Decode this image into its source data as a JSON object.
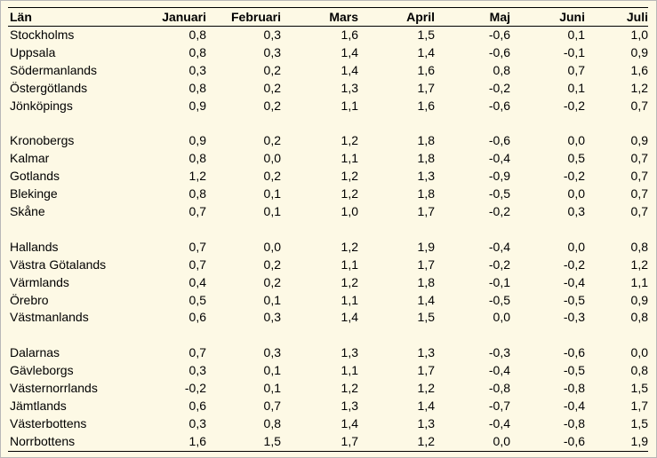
{
  "headers": [
    "Län",
    "Januari",
    "Februari",
    "Mars",
    "April",
    "Maj",
    "Juni",
    "Juli"
  ],
  "groups": [
    {
      "rows": [
        {
          "name": "Stockholms",
          "values": [
            "0,8",
            "0,3",
            "1,6",
            "1,5",
            "-0,6",
            "0,1",
            "1,0"
          ]
        },
        {
          "name": "Uppsala",
          "values": [
            "0,8",
            "0,3",
            "1,4",
            "1,4",
            "-0,6",
            "-0,1",
            "0,9"
          ]
        },
        {
          "name": "Södermanlands",
          "values": [
            "0,3",
            "0,2",
            "1,4",
            "1,6",
            "0,8",
            "0,7",
            "1,6"
          ]
        },
        {
          "name": "Östergötlands",
          "values": [
            "0,8",
            "0,2",
            "1,3",
            "1,7",
            "-0,2",
            "0,1",
            "1,2"
          ]
        },
        {
          "name": "Jönköpings",
          "values": [
            "0,9",
            "0,2",
            "1,1",
            "1,6",
            "-0,6",
            "-0,2",
            "0,7"
          ]
        }
      ]
    },
    {
      "rows": [
        {
          "name": "Kronobergs",
          "values": [
            "0,9",
            "0,2",
            "1,2",
            "1,8",
            "-0,6",
            "0,0",
            "0,9"
          ]
        },
        {
          "name": "Kalmar",
          "values": [
            "0,8",
            "0,0",
            "1,1",
            "1,8",
            "-0,4",
            "0,5",
            "0,7"
          ]
        },
        {
          "name": "Gotlands",
          "values": [
            "1,2",
            "0,2",
            "1,2",
            "1,3",
            "-0,9",
            "-0,2",
            "0,7"
          ]
        },
        {
          "name": "Blekinge",
          "values": [
            "0,8",
            "0,1",
            "1,2",
            "1,8",
            "-0,5",
            "0,0",
            "0,7"
          ]
        },
        {
          "name": "Skåne",
          "values": [
            "0,7",
            "0,1",
            "1,0",
            "1,7",
            "-0,2",
            "0,3",
            "0,7"
          ]
        }
      ]
    },
    {
      "rows": [
        {
          "name": "Hallands",
          "values": [
            "0,7",
            "0,0",
            "1,2",
            "1,9",
            "-0,4",
            "0,0",
            "0,8"
          ]
        },
        {
          "name": "Västra Götalands",
          "values": [
            "0,7",
            "0,2",
            "1,1",
            "1,7",
            "-0,2",
            "-0,2",
            "1,2"
          ]
        },
        {
          "name": "Värmlands",
          "values": [
            "0,4",
            "0,2",
            "1,2",
            "1,8",
            "-0,1",
            "-0,4",
            "1,1"
          ]
        },
        {
          "name": "Örebro",
          "values": [
            "0,5",
            "0,1",
            "1,1",
            "1,4",
            "-0,5",
            "-0,5",
            "0,9"
          ]
        },
        {
          "name": "Västmanlands",
          "values": [
            "0,6",
            "0,3",
            "1,4",
            "1,5",
            "0,0",
            "-0,3",
            "0,8"
          ]
        }
      ]
    },
    {
      "rows": [
        {
          "name": "Dalarnas",
          "values": [
            "0,7",
            "0,3",
            "1,3",
            "1,3",
            "-0,3",
            "-0,6",
            "0,0"
          ]
        },
        {
          "name": "Gävleborgs",
          "values": [
            "0,3",
            "0,1",
            "1,1",
            "1,7",
            "-0,4",
            "-0,5",
            "0,8"
          ]
        },
        {
          "name": "Västernorrlands",
          "values": [
            "-0,2",
            "0,1",
            "1,2",
            "1,2",
            "-0,8",
            "-0,8",
            "1,5"
          ]
        },
        {
          "name": "Jämtlands",
          "values": [
            "0,6",
            "0,7",
            "1,3",
            "1,4",
            "-0,7",
            "-0,4",
            "1,7"
          ]
        },
        {
          "name": "Västerbottens",
          "values": [
            "0,3",
            "0,8",
            "1,4",
            "1,3",
            "-0,4",
            "-0,8",
            "1,5"
          ]
        },
        {
          "name": "Norrbottens",
          "values": [
            "1,6",
            "1,5",
            "1,7",
            "1,2",
            "0,0",
            "-0,6",
            "1,9"
          ]
        }
      ]
    }
  ]
}
